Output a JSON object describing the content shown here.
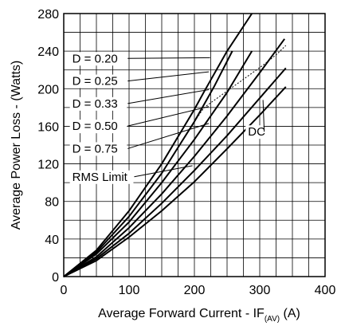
{
  "chart_data": {
    "type": "line",
    "title": "",
    "xlabel": "Average Forward Current - I",
    "xlabel_sub_main": "F",
    "xlabel_subscript": "(AV)",
    "xlabel_unit": " (A)",
    "ylabel": "Average Power Loss - (Watts)",
    "xlim": [
      0,
      400
    ],
    "ylim": [
      0,
      280
    ],
    "x_ticks": [
      "0",
      "100",
      "200",
      "300",
      "400"
    ],
    "y_ticks": [
      "0",
      "40",
      "80",
      "120",
      "160",
      "200",
      "240",
      "280"
    ],
    "grid": true,
    "series": [
      {
        "name": "D = 0.20",
        "x": [
          0,
          50,
          100,
          150,
          200,
          215,
          250,
          288
        ],
        "y": [
          0,
          28,
          70,
          120,
          178,
          197,
          240,
          280
        ]
      },
      {
        "name": "D = 0.25",
        "x": [
          0,
          50,
          100,
          150,
          200,
          230,
          258
        ],
        "y": [
          0,
          26,
          64,
          110,
          165,
          202,
          240
        ]
      },
      {
        "name": "D = 0.33",
        "x": [
          0,
          50,
          100,
          150,
          200,
          250,
          288
        ],
        "y": [
          0,
          24,
          58,
          100,
          146,
          196,
          240
        ]
      },
      {
        "name": "D = 0.50",
        "x": [
          0,
          50,
          100,
          150,
          200,
          250,
          300,
          338
        ],
        "y": [
          0,
          21,
          52,
          88,
          128,
          171,
          217,
          253
        ]
      },
      {
        "name": "D = 0.75",
        "x": [
          0,
          50,
          100,
          150,
          200,
          250,
          300,
          340
        ],
        "y": [
          0,
          19,
          46,
          78,
          113,
          150,
          190,
          222
        ]
      },
      {
        "name": "DC",
        "x": [
          0,
          50,
          100,
          150,
          200,
          250,
          300,
          340
        ],
        "y": [
          0,
          17,
          42,
          70,
          101,
          136,
          172,
          202
        ]
      }
    ],
    "rms_limit": {
      "label": "RMS Limit",
      "x": [
        195,
        215,
        245,
        275,
        305,
        325,
        340
      ],
      "y": [
        160,
        180,
        195,
        210,
        225,
        236,
        246
      ]
    },
    "annotations": [
      {
        "text": "D = 0.20",
        "x": 13,
        "y": 228,
        "target_x": 224,
        "target_y": 233
      },
      {
        "text": "D = 0.25",
        "x": 13,
        "y": 204,
        "target_x": 222,
        "target_y": 218
      },
      {
        "text": "D = 0.33",
        "x": 13,
        "y": 180,
        "target_x": 222,
        "target_y": 199
      },
      {
        "text": "D = 0.50",
        "x": 13,
        "y": 156,
        "target_x": 222,
        "target_y": 181
      },
      {
        "text": "D = 0.75",
        "x": 13,
        "y": 132,
        "target_x": 222,
        "target_y": 163
      },
      {
        "text": "DC",
        "x": 282,
        "y": 150,
        "target_x": 305,
        "target_y": 188
      },
      {
        "text": "RMS Limit",
        "x": 13,
        "y": 102,
        "target_x": 197,
        "target_y": 118
      }
    ]
  }
}
